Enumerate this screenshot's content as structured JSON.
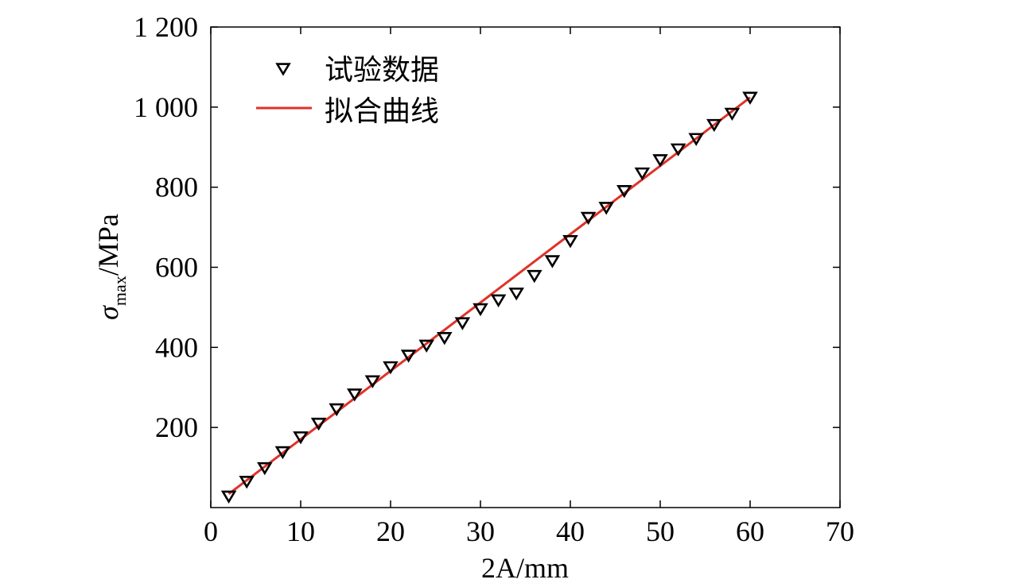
{
  "chart_data": {
    "type": "scatter",
    "xlabel": "2A/mm",
    "ylabel": "σmax/MPa",
    "xlim": [
      0,
      70
    ],
    "ylim": [
      0,
      1200
    ],
    "x_ticks": [
      "0",
      "10",
      "20",
      "30",
      "40",
      "50",
      "60",
      "70"
    ],
    "y_ticks": [
      "200",
      "400",
      "600",
      "800",
      "1 000",
      "1 200"
    ],
    "legend_position": "top-left",
    "grid": false,
    "series": [
      {
        "name": "试验数据",
        "type": "scatter",
        "marker": "down-triangle",
        "color": "#000000",
        "x": [
          2,
          4,
          6,
          8,
          10,
          12,
          14,
          16,
          18,
          20,
          22,
          24,
          26,
          28,
          30,
          32,
          34,
          36,
          38,
          40,
          42,
          44,
          46,
          48,
          50,
          52,
          54,
          56,
          58,
          60
        ],
        "y": [
          29,
          66,
          100,
          140,
          177,
          211,
          247,
          284,
          317,
          352,
          381,
          406,
          425,
          462,
          497,
          519,
          536,
          580,
          617,
          667,
          725,
          750,
          792,
          836,
          869,
          896,
          922,
          957,
          985,
          1025
        ]
      },
      {
        "name": "拟合曲线",
        "type": "line",
        "color": "#e03228",
        "x": [
          2,
          60
        ],
        "y": [
          34,
          1024
        ]
      }
    ]
  }
}
